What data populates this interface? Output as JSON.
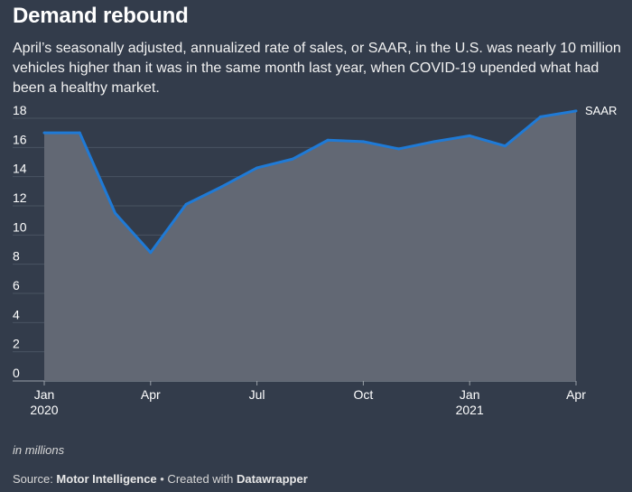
{
  "chart_title": "Demand rebound",
  "chart_subtitle": "April’s seasonally adjusted, annualized rate of sales, or SAAR, in the U.S. was nearly 10 million vehicles higher than it was in the same month last year, when COVID-19 upended what had been a healthy market.",
  "notes": "in millions",
  "source": {
    "prefix": "Source: ",
    "name": "Motor Intelligence",
    "separator": " • Created with ",
    "tool": "Datawrapper"
  },
  "chart_data": {
    "type": "area",
    "title": "Demand rebound",
    "xlabel": "",
    "ylabel": "",
    "ylim": [
      0,
      18
    ],
    "yticks": [
      0,
      2,
      4,
      6,
      8,
      10,
      12,
      14,
      16,
      18
    ],
    "grid": true,
    "x": [
      "2020-01",
      "2020-02",
      "2020-03",
      "2020-04",
      "2020-05",
      "2020-06",
      "2020-07",
      "2020-08",
      "2020-09",
      "2020-10",
      "2020-11",
      "2020-12",
      "2021-01",
      "2021-02",
      "2021-03",
      "2021-04"
    ],
    "xtick_labels": [
      {
        "x": "2020-01",
        "line1": "Jan",
        "line2": "2020"
      },
      {
        "x": "2020-04",
        "line1": "Apr",
        "line2": ""
      },
      {
        "x": "2020-07",
        "line1": "Jul",
        "line2": ""
      },
      {
        "x": "2020-10",
        "line1": "Oct",
        "line2": ""
      },
      {
        "x": "2021-01",
        "line1": "Jan",
        "line2": "2021"
      },
      {
        "x": "2021-04",
        "line1": "Apr",
        "line2": ""
      }
    ],
    "series": [
      {
        "name": "SAAR",
        "color": "#1f7ad6",
        "fill": "#626874",
        "values": [
          17.0,
          17.0,
          11.5,
          8.8,
          12.1,
          13.3,
          14.6,
          15.2,
          16.5,
          16.4,
          15.9,
          16.4,
          16.8,
          16.1,
          18.1,
          18.5
        ]
      }
    ]
  }
}
